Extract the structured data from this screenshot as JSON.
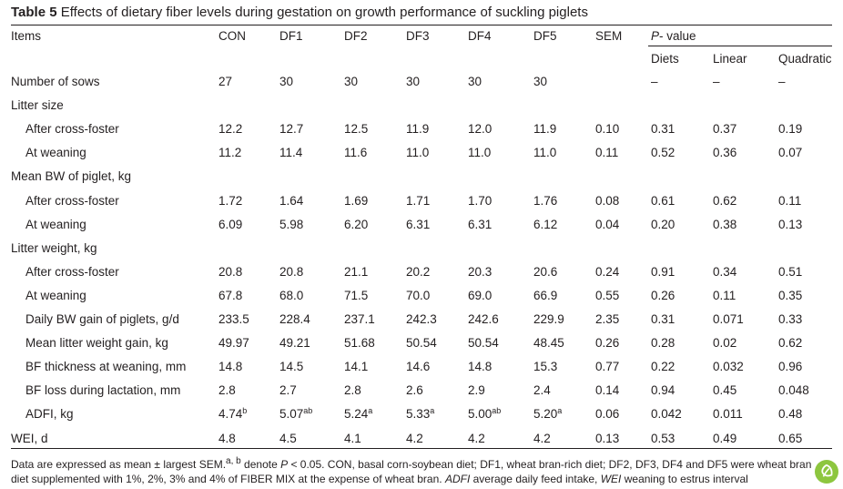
{
  "caption": {
    "number": "Table 5",
    "text": "Effects of dietary fiber levels during gestation on growth performance of suckling piglets"
  },
  "header": {
    "items": "Items",
    "groups": [
      "CON",
      "DF1",
      "DF2",
      "DF3",
      "DF4",
      "DF5"
    ],
    "sem": "SEM",
    "p_value_italic": "P",
    "p_value_rest": "- value",
    "p_columns": [
      "Diets",
      "Linear",
      "Quadratic"
    ]
  },
  "rows": [
    {
      "label": "Number of sows",
      "indent": false,
      "values": [
        "27",
        "30",
        "30",
        "30",
        "30",
        "30",
        "",
        "–",
        "–",
        "–"
      ]
    },
    {
      "label": "Litter size",
      "indent": false,
      "values": []
    },
    {
      "label": "After cross-foster",
      "indent": true,
      "values": [
        "12.2",
        "12.7",
        "12.5",
        "11.9",
        "12.0",
        "11.9",
        "0.10",
        "0.31",
        "0.37",
        "0.19"
      ]
    },
    {
      "label": "At weaning",
      "indent": true,
      "values": [
        "11.2",
        "11.4",
        "11.6",
        "11.0",
        "11.0",
        "11.0",
        "0.11",
        "0.52",
        "0.36",
        "0.07"
      ]
    },
    {
      "label": "Mean BW of piglet, kg",
      "indent": false,
      "values": []
    },
    {
      "label": "After cross-foster",
      "indent": true,
      "values": [
        "1.72",
        "1.64",
        "1.69",
        "1.71",
        "1.70",
        "1.76",
        "0.08",
        "0.61",
        "0.62",
        "0.11"
      ]
    },
    {
      "label": "At weaning",
      "indent": true,
      "values": [
        "6.09",
        "5.98",
        "6.20",
        "6.31",
        "6.31",
        "6.12",
        "0.04",
        "0.20",
        "0.38",
        "0.13"
      ]
    },
    {
      "label": "Litter weight, kg",
      "indent": false,
      "values": []
    },
    {
      "label": "After cross-foster",
      "indent": true,
      "values": [
        "20.8",
        "20.8",
        "21.1",
        "20.2",
        "20.3",
        "20.6",
        "0.24",
        "0.91",
        "0.34",
        "0.51"
      ]
    },
    {
      "label": "At weaning",
      "indent": true,
      "values": [
        "67.8",
        "68.0",
        "71.5",
        "70.0",
        "69.0",
        "66.9",
        "0.55",
        "0.26",
        "0.11",
        "0.35"
      ]
    },
    {
      "label": "Daily BW gain of piglets, g/d",
      "indent": true,
      "values": [
        "233.5",
        "228.4",
        "237.1",
        "242.3",
        "242.6",
        "229.9",
        "2.35",
        "0.31",
        "0.071",
        "0.33"
      ]
    },
    {
      "label": "Mean litter weight gain, kg",
      "indent": true,
      "values": [
        "49.97",
        "49.21",
        "51.68",
        "50.54",
        "50.54",
        "48.45",
        "0.26",
        "0.28",
        "0.02",
        "0.62"
      ]
    },
    {
      "label": "BF thickness at weaning, mm",
      "indent": true,
      "values": [
        "14.8",
        "14.5",
        "14.1",
        "14.6",
        "14.8",
        "15.3",
        "0.77",
        "0.22",
        "0.032",
        "0.96"
      ]
    },
    {
      "label": "BF loss during lactation, mm",
      "indent": true,
      "values": [
        "2.8",
        "2.7",
        "2.8",
        "2.6",
        "2.9",
        "2.4",
        "0.14",
        "0.94",
        "0.45",
        "0.048"
      ]
    },
    {
      "label": "ADFI, kg",
      "indent": true,
      "values": [
        "4.74",
        "5.07",
        "5.24",
        "5.33",
        "5.00",
        "5.20",
        "0.06",
        "0.042",
        "0.011",
        "0.48"
      ],
      "sups": [
        "b",
        "ab",
        "a",
        "a",
        "ab",
        "a",
        "",
        "",
        "",
        ""
      ]
    },
    {
      "label": "WEI, d",
      "indent": false,
      "values": [
        "4.8",
        "4.5",
        "4.1",
        "4.2",
        "4.2",
        "4.2",
        "0.13",
        "0.53",
        "0.49",
        "0.65"
      ]
    }
  ],
  "footnote": {
    "part1": "Data are expressed as mean ± largest SEM.",
    "sup_a": "a",
    "sep": ",",
    "sup_b": "b",
    "part2": " denote ",
    "p_italic": "P",
    "part3": " < 0.05. CON, basal corn-soybean diet; DF1, wheat bran-rich diet; DF2, DF3, DF4 and DF5 were wheat bran diet supplemented with 1%, 2%, 3% and 4% of FIBER MIX at the expense of wheat bran. ",
    "adfi_italic": "ADFI",
    "part4": " average daily feed intake, ",
    "wei_italic": "WEI",
    "part5": " weaning to estrus interval"
  },
  "icons": {
    "corner_badge": "leaf-badge-icon"
  },
  "colors": {
    "text": "#231f20",
    "badge": "#8dc63f"
  }
}
